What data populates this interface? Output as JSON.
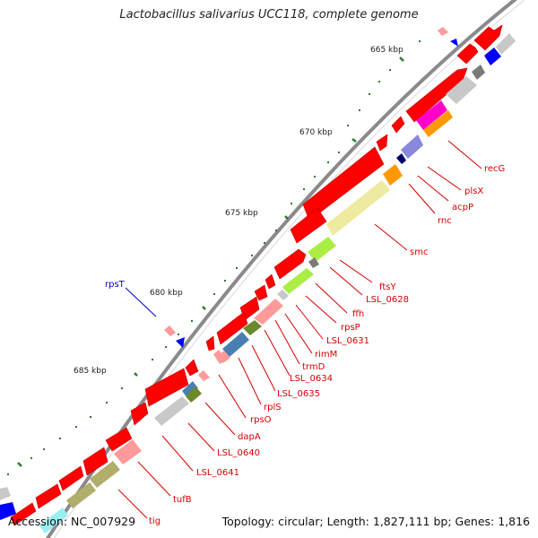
{
  "title": "Lactobacillus salivarius UCC118, complete genome",
  "footer": {
    "accession": "Accession: NC_007929",
    "summary": "Topology: circular; Length: 1,827,111 bp; Genes: 1,816"
  },
  "colors": {
    "background": "#ffffff",
    "backbone": "#8a8a8a",
    "cds_forward": "#ff0000",
    "tick_major": "#2a7a2a",
    "tick_minor": "#2a7a2a",
    "label_forward": "#d40000",
    "label_reverse": "#0000cc",
    "gene_blue": "#0000ff"
  },
  "ruler": {
    "unit": "kbp",
    "labels": [
      "665 kbp",
      "670 kbp",
      "675 kbp",
      "680 kbp",
      "685 kbp"
    ]
  },
  "gene_labels": [
    "recG",
    "plsX",
    "acpP",
    "rnc",
    "smc",
    "ftsY",
    "LSL_0628",
    "ffh",
    "rpsP",
    "LSL_0631",
    "rimM",
    "trmD",
    "LSL_0634",
    "LSL_0635",
    "rplS",
    "rpsO",
    "dapA",
    "LSL_0640",
    "LSL_0641",
    "tufB",
    "tig"
  ],
  "reverse_labels": [
    "rpsT"
  ]
}
